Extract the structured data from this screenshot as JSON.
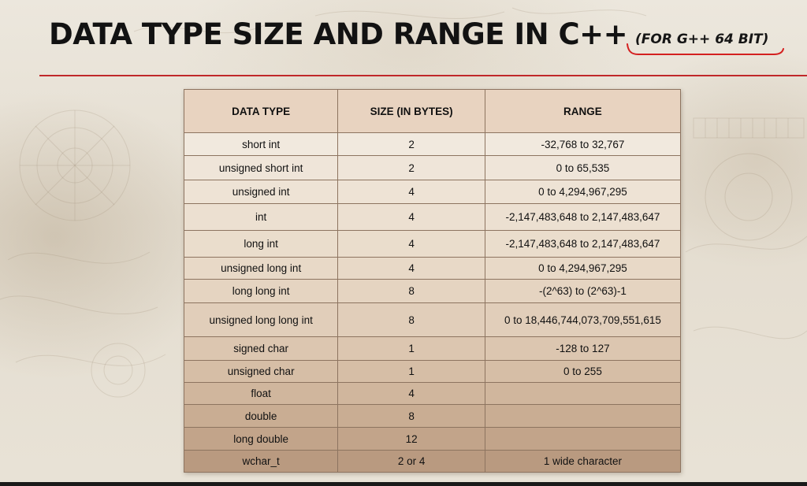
{
  "slide": {
    "title": "DATA TYPE SIZE AND RANGE IN C++",
    "subtitle": "(FOR G++ 64 BIT)",
    "colors": {
      "title_text": "#121212",
      "rule": "#c0282a",
      "annotation": "#d42020",
      "table_border": "#8d7460"
    }
  },
  "table": {
    "headers": [
      "DATA TYPE",
      "SIZE (IN BYTES)",
      "RANGE"
    ],
    "rows": [
      {
        "type": "short int",
        "size": "2",
        "range": "-32,768 to 32,767"
      },
      {
        "type": "unsigned short int",
        "size": "2",
        "range": "0 to 65,535"
      },
      {
        "type": "unsigned int",
        "size": "4",
        "range": "0 to 4,294,967,295"
      },
      {
        "type": "int",
        "size": "4",
        "range": "-2,147,483,648 to 2,147,483,647"
      },
      {
        "type": "long int",
        "size": "4",
        "range": "-2,147,483,648 to 2,147,483,647"
      },
      {
        "type": "unsigned long int",
        "size": "4",
        "range": "0 to 4,294,967,295"
      },
      {
        "type": "long long int",
        "size": "8",
        "range": "-(2^63) to (2^63)-1"
      },
      {
        "type": "unsigned long long int",
        "size": "8",
        "range": "0 to 18,446,744,073,709,551,615"
      },
      {
        "type": "signed char",
        "size": "1",
        "range": "-128 to 127"
      },
      {
        "type": "unsigned char",
        "size": "1",
        "range": "0 to 255"
      },
      {
        "type": "float",
        "size": "4",
        "range": ""
      },
      {
        "type": "double",
        "size": "8",
        "range": ""
      },
      {
        "type": "long double",
        "size": "12",
        "range": ""
      },
      {
        "type": "wchar_t",
        "size": "2 or 4",
        "range": "1 wide character"
      }
    ]
  }
}
